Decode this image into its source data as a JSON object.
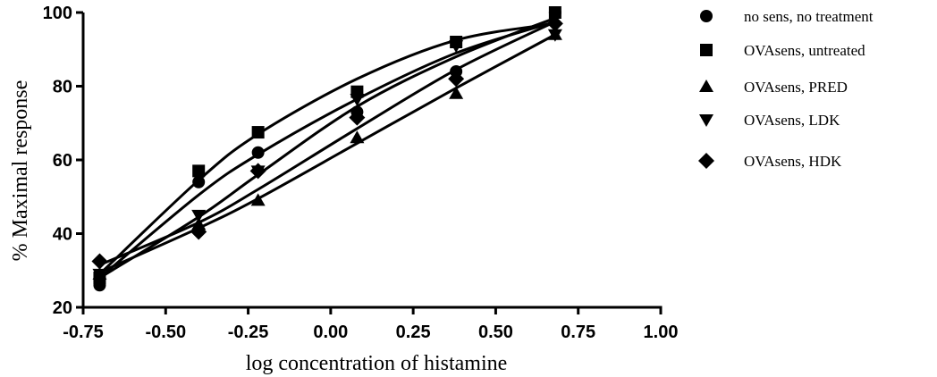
{
  "chart_data": {
    "type": "scatter",
    "xlabel": "log concentration of histamine",
    "ylabel": "% Maximal response",
    "xlim": [
      -0.75,
      1.0
    ],
    "ylim": [
      20,
      100
    ],
    "xticks": [
      "-0.75",
      "-0.50",
      "-0.25",
      "0.00",
      "0.25",
      "0.50",
      "0.75",
      "1.00"
    ],
    "xtick_values": [
      -0.75,
      -0.5,
      -0.25,
      0.0,
      0.25,
      0.5,
      0.75,
      1.0
    ],
    "yticks": [
      "20",
      "40",
      "60",
      "80",
      "100"
    ],
    "ytick_values": [
      20,
      40,
      60,
      80,
      100
    ],
    "grid": false,
    "legend_position": "right",
    "series": [
      {
        "name": "no sens, no treatment",
        "marker": "circle",
        "x": [
          -0.7,
          -0.4,
          -0.22,
          0.08,
          0.38,
          0.68
        ],
        "y": [
          26,
          54,
          62,
          73,
          84,
          100
        ],
        "fit": [
          28,
          50.5,
          61.5,
          76.5,
          89,
          97.5
        ]
      },
      {
        "name": "OVAsens, untreated",
        "marker": "square",
        "x": [
          -0.7,
          -0.4,
          -0.22,
          0.08,
          0.38,
          0.68
        ],
        "y": [
          28,
          57,
          67.5,
          78.5,
          92,
          100
        ],
        "fit": [
          29,
          54.5,
          67,
          82,
          92.5,
          97
        ]
      },
      {
        "name": "OVAsens, PRED",
        "marker": "triangle-up",
        "x": [
          -0.7,
          -0.4,
          -0.22,
          0.08,
          0.38,
          0.68
        ],
        "y": [
          29,
          42.5,
          49,
          66,
          78,
          94
        ],
        "fit": [
          29.5,
          41.5,
          49.5,
          64.5,
          79.5,
          94
        ]
      },
      {
        "name": "OVAsens, LDK",
        "marker": "triangle-down",
        "x": [
          -0.7,
          -0.4,
          -0.22,
          0.08,
          0.38,
          0.68
        ],
        "y": [
          29,
          45,
          57,
          76.5,
          91,
          94
        ],
        "fit": [
          28,
          44.5,
          56,
          74.5,
          88,
          98.5
        ]
      },
      {
        "name": "OVAsens, HDK",
        "marker": "diamond",
        "x": [
          -0.7,
          -0.4,
          -0.22,
          0.08,
          0.38,
          0.68
        ],
        "y": [
          32.5,
          40.5,
          57,
          71.5,
          82,
          97
        ]
      },
      {
        "name": "OVAsens, HDK",
        "marker": "diamond",
        "x": [
          -0.7,
          -0.4,
          -0.22,
          0.08,
          0.38,
          0.68
        ],
        "y": [
          32.5,
          40.5,
          57,
          71.5,
          82,
          97
        ],
        "fit": [
          31.5,
          43,
          52,
          68.5,
          84.5,
          97.5
        ]
      }
    ]
  }
}
